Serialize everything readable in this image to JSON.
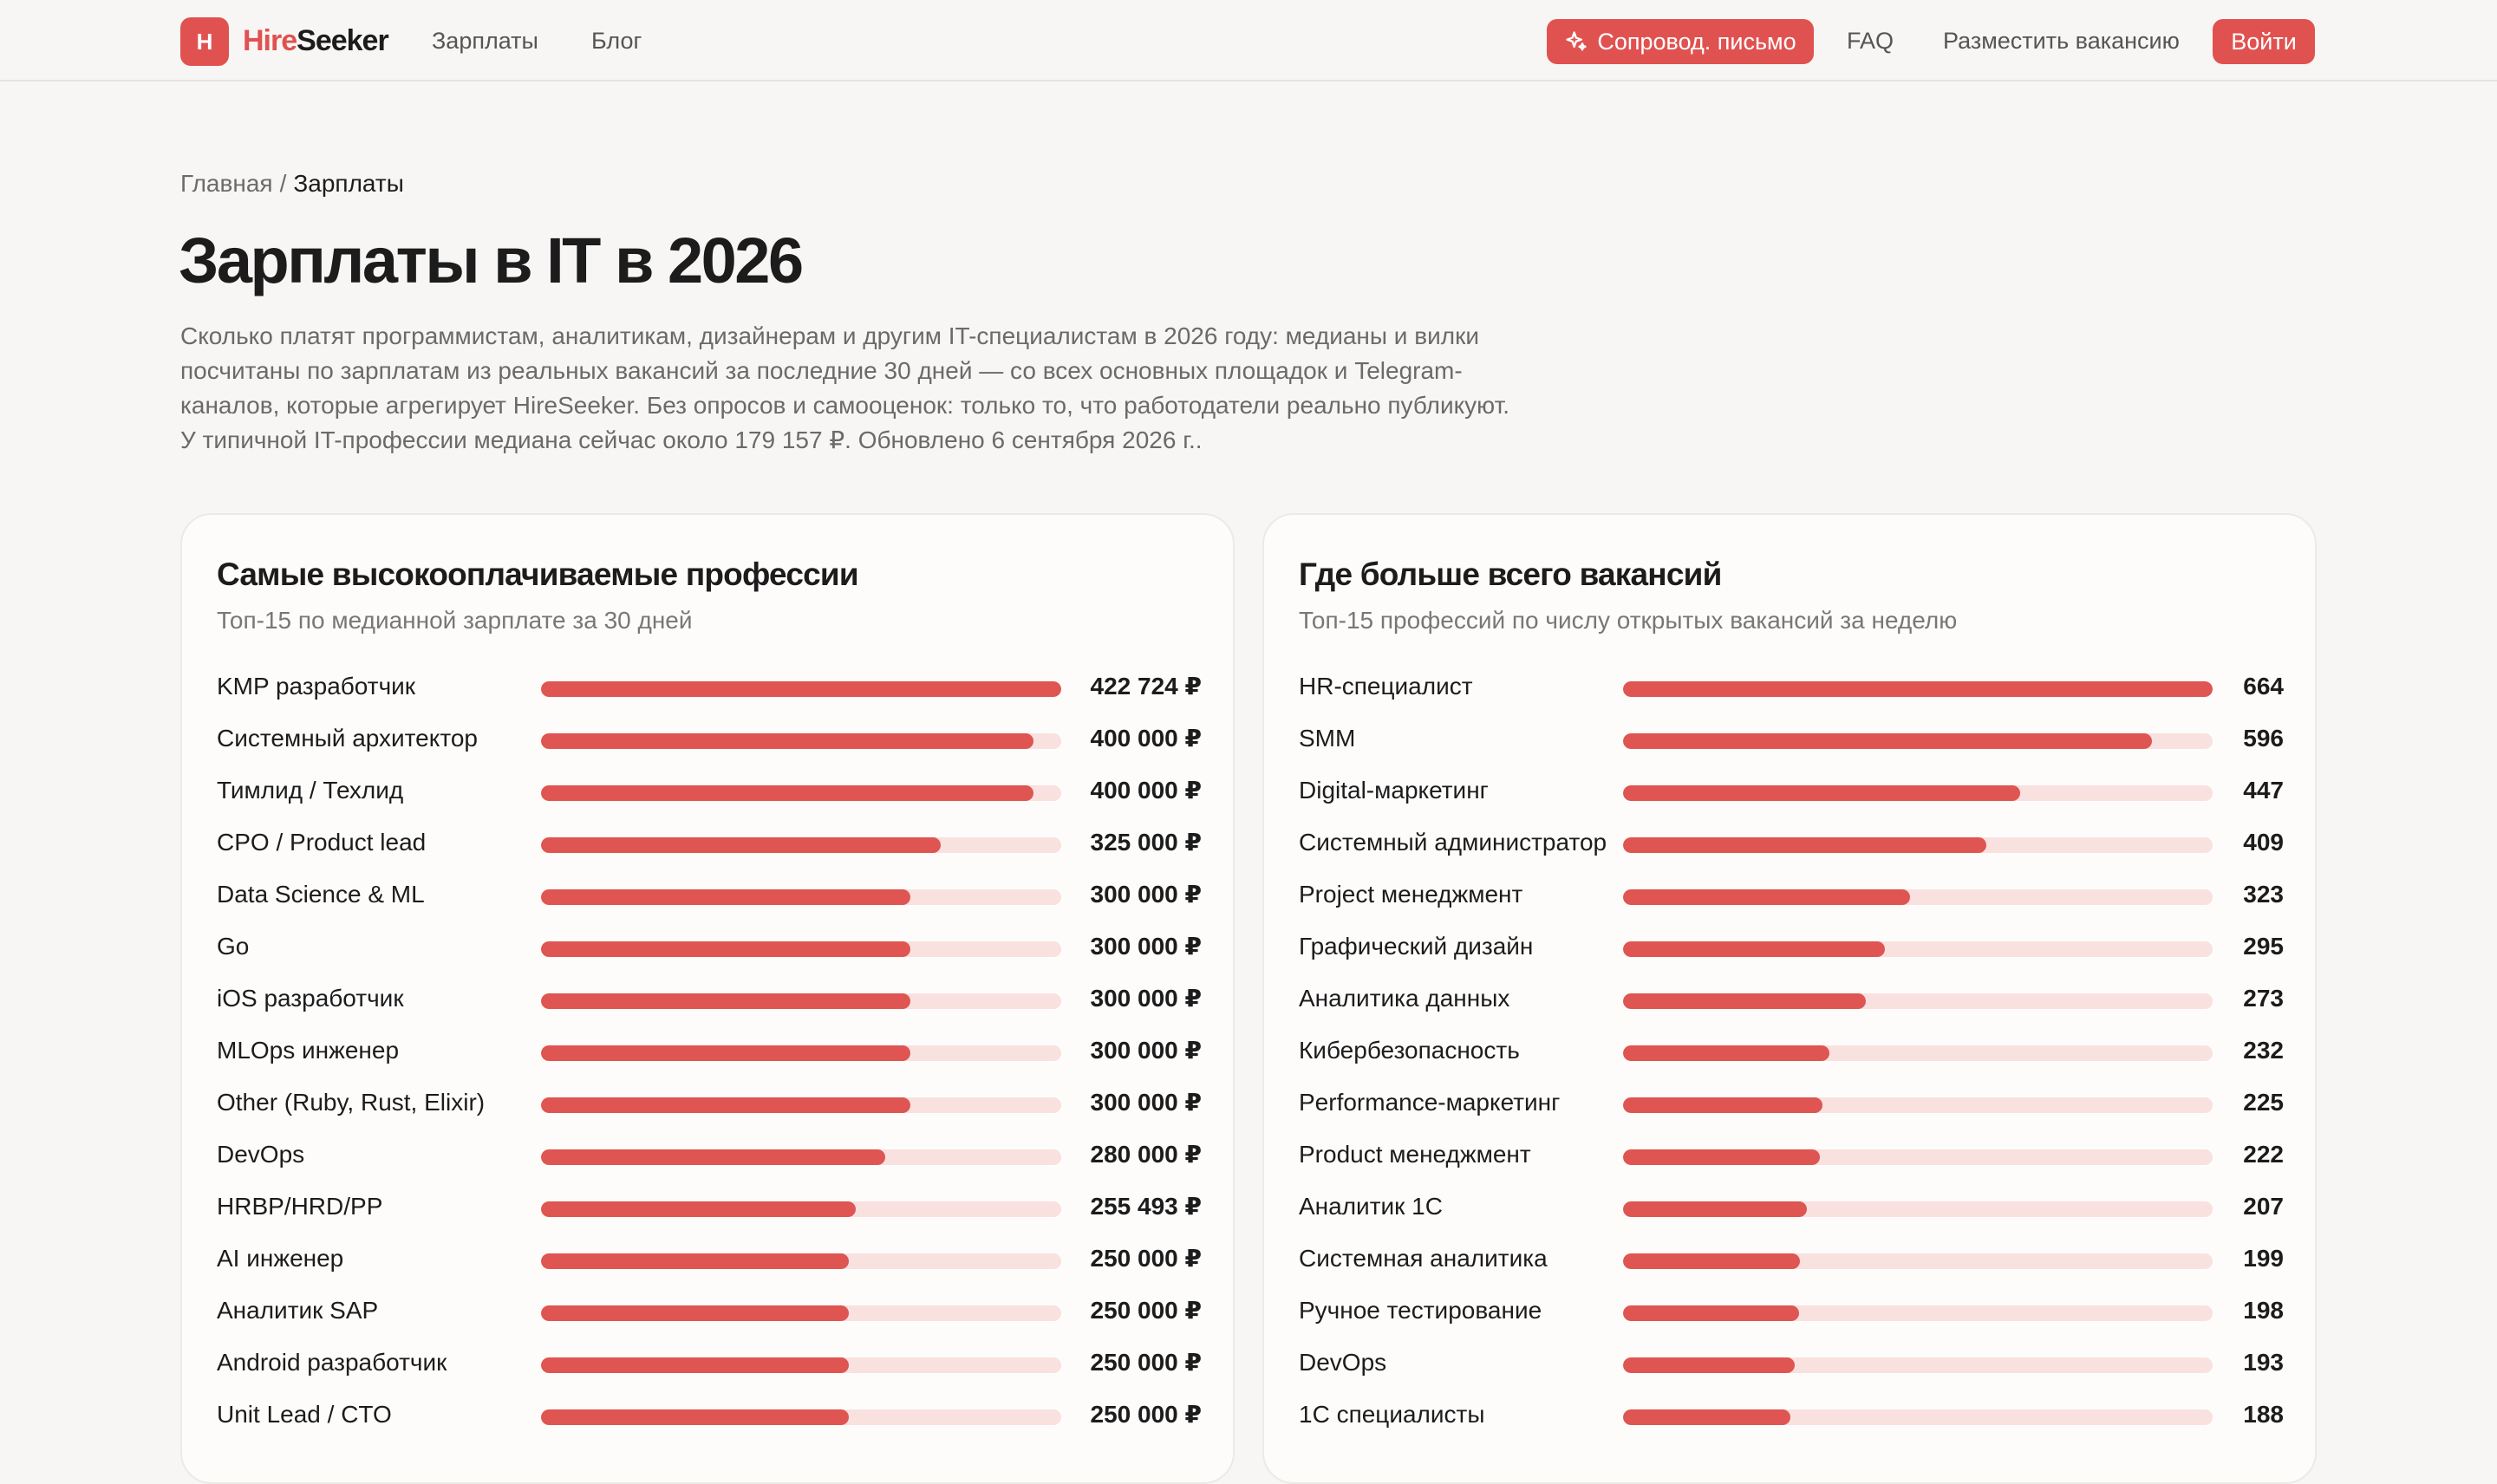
{
  "header": {
    "logo_letter": "H",
    "logo_hire": "Hire",
    "logo_seeker": "Seeker",
    "nav": [
      "Зарплаты",
      "Блог"
    ],
    "cover_letter_button": "Сопровод. письмо",
    "faq": "FAQ",
    "post_vacancy": "Разместить вакансию",
    "login_button": "Войти"
  },
  "breadcrumb": {
    "home": "Главная",
    "separator": "/",
    "current": "Зарплаты"
  },
  "page": {
    "title": "Зарплаты в IT в 2026",
    "description": "Сколько платят программистам, аналитикам, дизайнерам и другим IT-специалистам в 2026 году: медианы и вилки посчитаны по зарплатам из реальных вакансий за последние 30 дней — со всех основных площадок и Telegram-каналов, которые агрегирует HireSeeker. Без опросов и самооценок: только то, что работодатели реально публикуют. У типичной IT-профессии медиана сейчас около 179 157 ₽. Обновлено 6 сентября 2026 г.."
  },
  "colors": {
    "accent": "#e05250",
    "bar_fill": "#de5552",
    "bar_track": "#f8e1df",
    "background": "#f7f6f4"
  },
  "top_paid": {
    "title": "Самые высокооплачиваемые профессии",
    "subtitle": "Топ-15 по медианной зарплате за 30 дней",
    "max_value": 422724,
    "items": [
      {
        "label": "KMP разработчик",
        "value": 422724,
        "display": "422 724 ₽"
      },
      {
        "label": "Системный архитектор",
        "value": 400000,
        "display": "400 000 ₽"
      },
      {
        "label": "Тимлид / Техлид",
        "value": 400000,
        "display": "400 000 ₽"
      },
      {
        "label": "CPO / Product lead",
        "value": 325000,
        "display": "325 000 ₽"
      },
      {
        "label": "Data Science & ML",
        "value": 300000,
        "display": "300 000 ₽"
      },
      {
        "label": "Go",
        "value": 300000,
        "display": "300 000 ₽"
      },
      {
        "label": "iOS разработчик",
        "value": 300000,
        "display": "300 000 ₽"
      },
      {
        "label": "MLOps инженер",
        "value": 300000,
        "display": "300 000 ₽"
      },
      {
        "label": "Other (Ruby, Rust, Elixir)",
        "value": 300000,
        "display": "300 000 ₽"
      },
      {
        "label": "DevOps",
        "value": 280000,
        "display": "280 000 ₽"
      },
      {
        "label": "HRBP/HRD/PP",
        "value": 255493,
        "display": "255 493 ₽"
      },
      {
        "label": "AI инженер",
        "value": 250000,
        "display": "250 000 ₽"
      },
      {
        "label": "Аналитик SAP",
        "value": 250000,
        "display": "250 000 ₽"
      },
      {
        "label": "Android разработчик",
        "value": 250000,
        "display": "250 000 ₽"
      },
      {
        "label": "Unit Lead / CTO",
        "value": 250000,
        "display": "250 000 ₽"
      }
    ]
  },
  "most_vacancies": {
    "title": "Где больше всего вакансий",
    "subtitle": "Топ-15 профессий по числу открытых вакансий за неделю",
    "max_value": 664,
    "items": [
      {
        "label": "HR-специалист",
        "value": 664,
        "display": "664"
      },
      {
        "label": "SMM",
        "value": 596,
        "display": "596"
      },
      {
        "label": "Digital-маркетинг",
        "value": 447,
        "display": "447"
      },
      {
        "label": "Системный администратор",
        "value": 409,
        "display": "409"
      },
      {
        "label": "Project менеджмент",
        "value": 323,
        "display": "323"
      },
      {
        "label": "Графический дизайн",
        "value": 295,
        "display": "295"
      },
      {
        "label": "Аналитика данных",
        "value": 273,
        "display": "273"
      },
      {
        "label": "Кибербезопасность",
        "value": 232,
        "display": "232"
      },
      {
        "label": "Performance-маркетинг",
        "value": 225,
        "display": "225"
      },
      {
        "label": "Product менеджмент",
        "value": 222,
        "display": "222"
      },
      {
        "label": "Аналитик 1С",
        "value": 207,
        "display": "207"
      },
      {
        "label": "Системная аналитика",
        "value": 199,
        "display": "199"
      },
      {
        "label": "Ручное тестирование",
        "value": 198,
        "display": "198"
      },
      {
        "label": "DevOps",
        "value": 193,
        "display": "193"
      },
      {
        "label": "1С специалисты",
        "value": 188,
        "display": "188"
      }
    ]
  }
}
